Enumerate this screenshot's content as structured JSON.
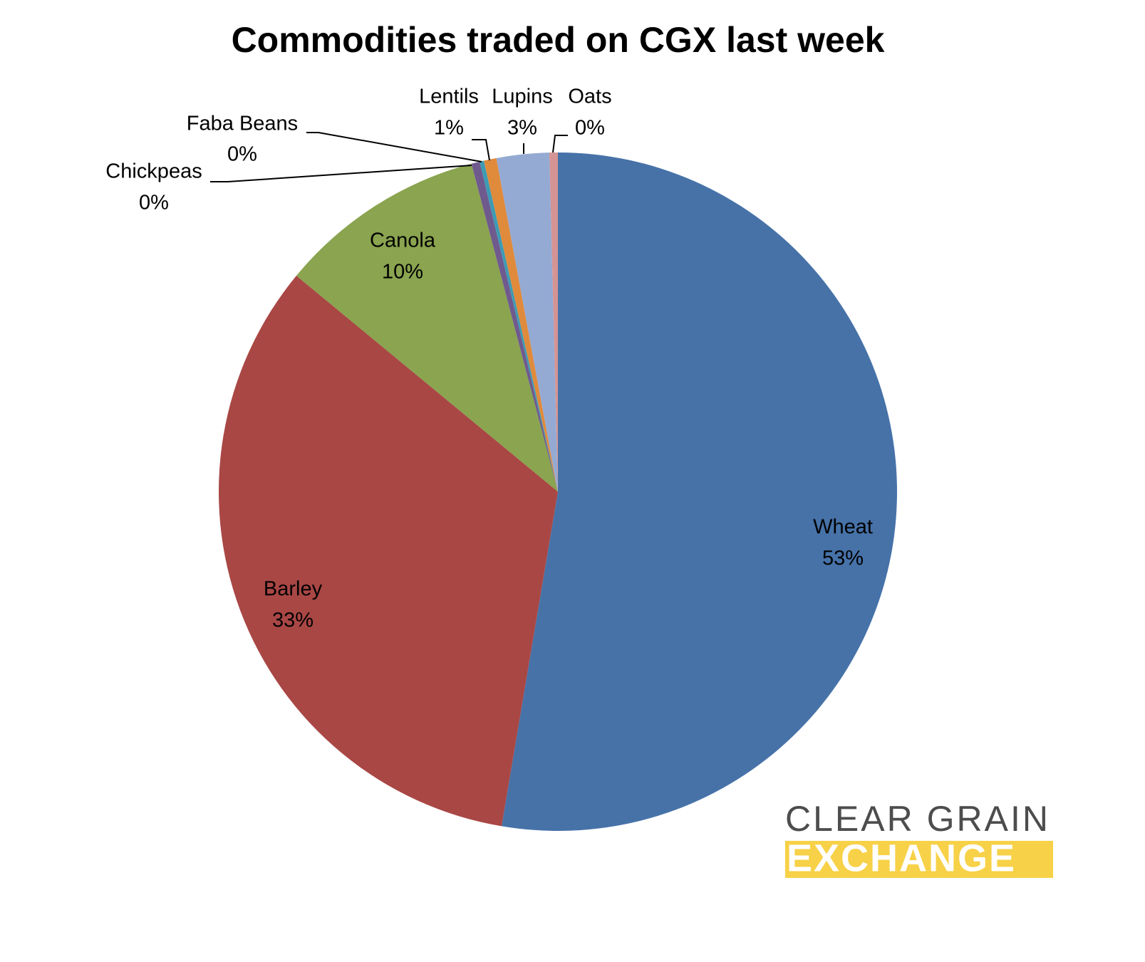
{
  "chart_data": {
    "type": "pie",
    "title": "Commodities traded on CGX last week",
    "categories": [
      "Wheat",
      "Barley",
      "Canola",
      "Chickpeas",
      "Faba Beans",
      "Lentils",
      "Lupins",
      "Oats"
    ],
    "values": [
      52.6,
      33.3,
      9.9,
      0.4,
      0.2,
      0.6,
      2.5,
      0.4
    ],
    "value_labels": [
      "53%",
      "33%",
      "10%",
      "0%",
      "0%",
      "1%",
      "3%",
      "0%"
    ],
    "colors": [
      "#4672a8",
      "#a94745",
      "#8aa44f",
      "#6f5a8e",
      "#3d9bb4",
      "#e08a3c",
      "#94aad3",
      "#d49494"
    ]
  },
  "logo": {
    "line1": "CLEAR GRAIN",
    "line2": "EXCHANGE"
  }
}
